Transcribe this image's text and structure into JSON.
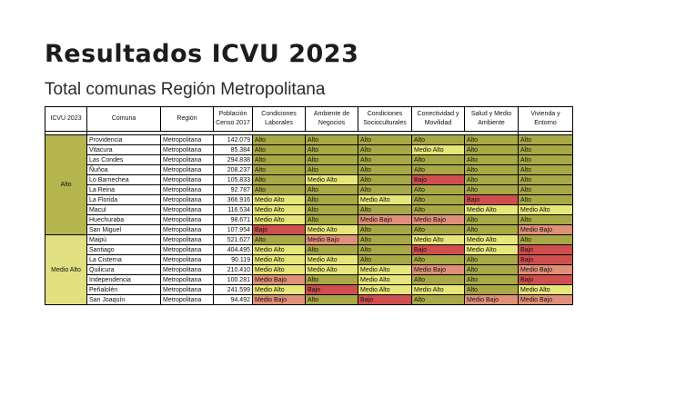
{
  "title": "Resultados ICVU 2023",
  "subtitle": "Total comunas Región Metropolitana",
  "colors": {
    "Alto": "#a8a847",
    "Medio Alto": "#e6e67a",
    "Medio Bajo": "#e09078",
    "Bajo": "#cf4f4f"
  },
  "table": {
    "headers": [
      "ICVU 2023",
      "Comuna",
      "Región",
      "Población Censo 2017",
      "Condiciones Laborales",
      "Ambiente de Negocios",
      "Condiciones Socioculturales",
      "Conectividad y Movilidad",
      "Salud y Medio Ambiente",
      "Vivienda y Entorno"
    ],
    "groups": [
      {
        "label": "Alto",
        "rows": [
          {
            "comuna": "Providencia",
            "region": "Metropolitana",
            "poblacion": "142.079",
            "laborales": "Alto",
            "negocios": "Alto",
            "socioculturales": "Alto",
            "conectividad": "Alto",
            "salud": "Alto",
            "vivienda": "Alto"
          },
          {
            "comuna": "Vitacura",
            "region": "Metropolitana",
            "poblacion": "85.384",
            "laborales": "Alto",
            "negocios": "Alto",
            "socioculturales": "Alto",
            "conectividad": "Medio Alto",
            "salud": "Alto",
            "vivienda": "Alto"
          },
          {
            "comuna": "Las Condes",
            "region": "Metropolitana",
            "poblacion": "294.838",
            "laborales": "Alto",
            "negocios": "Alto",
            "socioculturales": "Alto",
            "conectividad": "Alto",
            "salud": "Alto",
            "vivienda": "Alto"
          },
          {
            "comuna": "Ñuñoa",
            "region": "Metropolitana",
            "poblacion": "208.237",
            "laborales": "Alto",
            "negocios": "Alto",
            "socioculturales": "Alto",
            "conectividad": "Alto",
            "salud": "Alto",
            "vivienda": "Alto"
          },
          {
            "comuna": "Lo Barnechea",
            "region": "Metropolitana",
            "poblacion": "105.833",
            "laborales": "Alto",
            "negocios": "Medio Alto",
            "socioculturales": "Alto",
            "conectividad": "Bajo",
            "salud": "Alto",
            "vivienda": "Alto"
          },
          {
            "comuna": "La Reina",
            "region": "Metropolitana",
            "poblacion": "92.787",
            "laborales": "Alto",
            "negocios": "Alto",
            "socioculturales": "Alto",
            "conectividad": "Alto",
            "salud": "Alto",
            "vivienda": "Alto"
          },
          {
            "comuna": "La Florida",
            "region": "Metropolitana",
            "poblacion": "366.916",
            "laborales": "Medio Alto",
            "negocios": "Alto",
            "socioculturales": "Medio Alto",
            "conectividad": "Alto",
            "salud": "Bajo",
            "vivienda": "Alto"
          },
          {
            "comuna": "Macul",
            "region": "Metropolitana",
            "poblacion": "116.534",
            "laborales": "Medio Alto",
            "negocios": "Alto",
            "socioculturales": "Alto",
            "conectividad": "Alto",
            "salud": "Medio Alto",
            "vivienda": "Medio Alto"
          },
          {
            "comuna": "Huechuraba",
            "region": "Metropolitana",
            "poblacion": "98.671",
            "laborales": "Medio Alto",
            "negocios": "Alto",
            "socioculturales": "Medio Bajo",
            "conectividad": "Medio Bajo",
            "salud": "Alto",
            "vivienda": "Alto"
          },
          {
            "comuna": "San Miguel",
            "region": "Metropolitana",
            "poblacion": "107.954",
            "laborales": "Bajo",
            "negocios": "Medio Alto",
            "socioculturales": "Alto",
            "conectividad": "Alto",
            "salud": "Alto",
            "vivienda": "Medio Bajo"
          }
        ]
      },
      {
        "label": "Medio Alto",
        "rows": [
          {
            "comuna": "Maipú",
            "region": "Metropolitana",
            "poblacion": "521.627",
            "laborales": "Alto",
            "negocios": "Medio Bajo",
            "socioculturales": "Alto",
            "conectividad": "Medio Alto",
            "salud": "Medio Alto",
            "vivienda": "Alto"
          },
          {
            "comuna": "Santiago",
            "region": "Metropolitana",
            "poblacion": "404.495",
            "laborales": "Medio Alto",
            "negocios": "Alto",
            "socioculturales": "Alto",
            "conectividad": "Bajo",
            "salud": "Medio Alto",
            "vivienda": "Bajo"
          },
          {
            "comuna": "La Cisterna",
            "region": "Metropolitana",
            "poblacion": "90.119",
            "laborales": "Medio Alto",
            "negocios": "Medio Alto",
            "socioculturales": "Alto",
            "conectividad": "Alto",
            "salud": "Alto",
            "vivienda": "Bajo"
          },
          {
            "comuna": "Quilicura",
            "region": "Metropolitana",
            "poblacion": "210.410",
            "laborales": "Medio Alto",
            "negocios": "Medio Alto",
            "socioculturales": "Medio Alto",
            "conectividad": "Medio Bajo",
            "salud": "Alto",
            "vivienda": "Medio Bajo"
          },
          {
            "comuna": "Independencia",
            "region": "Metropolitana",
            "poblacion": "100.281",
            "laborales": "Medio Bajo",
            "negocios": "Alto",
            "socioculturales": "Medio Alto",
            "conectividad": "Alto",
            "salud": "Alto",
            "vivienda": "Bajo"
          },
          {
            "comuna": "Peñalolén",
            "region": "Metropolitana",
            "poblacion": "241.599",
            "laborales": "Medio Alto",
            "negocios": "Bajo",
            "socioculturales": "Medio Alto",
            "conectividad": "Medio Alto",
            "salud": "Alto",
            "vivienda": "Medio Alto"
          },
          {
            "comuna": "San Joaquín",
            "region": "Metropolitana",
            "poblacion": "94.492",
            "laborales": "Medio Bajo",
            "negocios": "Alto",
            "socioculturales": "Bajo",
            "conectividad": "Alto",
            "salud": "Medio Bajo",
            "vivienda": "Medio Bajo"
          }
        ]
      }
    ]
  }
}
